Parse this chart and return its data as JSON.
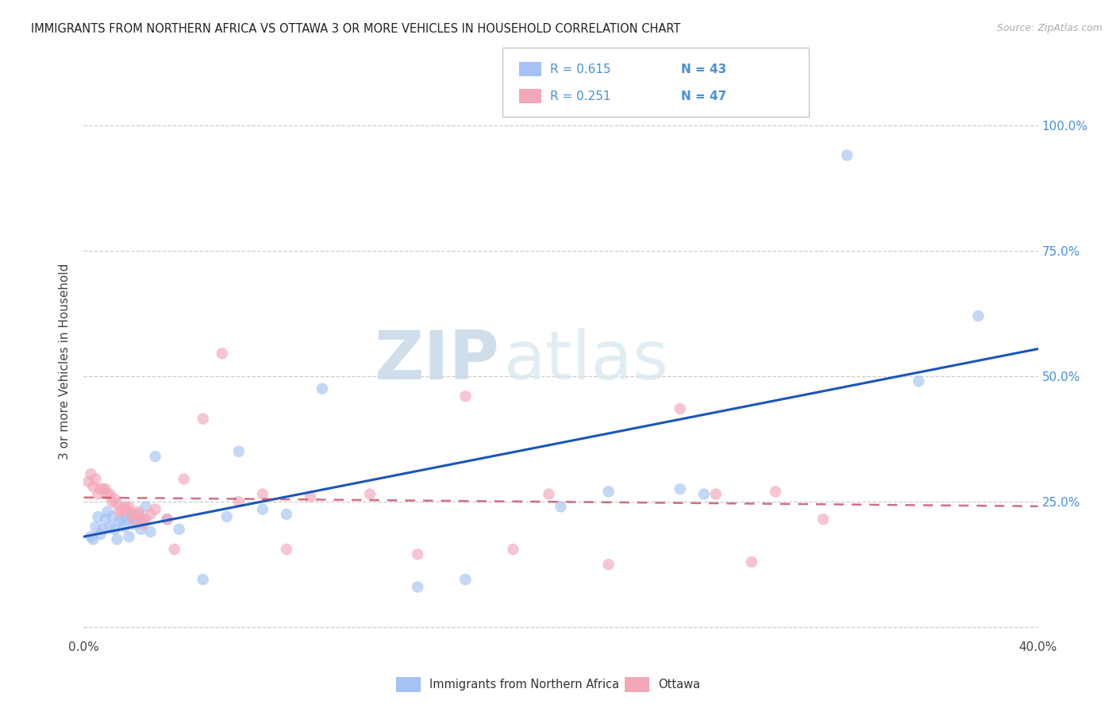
{
  "title": "IMMIGRANTS FROM NORTHERN AFRICA VS OTTAWA 3 OR MORE VEHICLES IN HOUSEHOLD CORRELATION CHART",
  "source": "Source: ZipAtlas.com",
  "legend_labels": [
    "Immigrants from Northern Africa",
    "Ottawa"
  ],
  "ylabel": "3 or more Vehicles in Household",
  "xlim": [
    0.0,
    0.4
  ],
  "ylim": [
    -0.02,
    1.08
  ],
  "blue_color": "#a4c2f4",
  "pink_color": "#f4a7b9",
  "blue_line_color": "#1a56bb",
  "pink_line_color": "#c0415a",
  "right_tick_color": "#4a90d9",
  "watermark_zip": "ZIP",
  "watermark_atlas": "atlas",
  "legend_r1": "R = 0.615",
  "legend_n1": "N = 43",
  "legend_r2": "R = 0.251",
  "legend_n2": "N = 47",
  "blue_x": [
    0.003,
    0.004,
    0.005,
    0.006,
    0.007,
    0.008,
    0.009,
    0.01,
    0.011,
    0.012,
    0.013,
    0.014,
    0.015,
    0.016,
    0.017,
    0.018,
    0.019,
    0.02,
    0.021,
    0.022,
    0.023,
    0.024,
    0.025,
    0.026,
    0.028,
    0.03,
    0.035,
    0.04,
    0.05,
    0.06,
    0.065,
    0.075,
    0.085,
    0.1,
    0.14,
    0.16,
    0.2,
    0.22,
    0.25,
    0.26,
    0.32,
    0.35,
    0.375
  ],
  "blue_y": [
    0.18,
    0.175,
    0.2,
    0.22,
    0.185,
    0.195,
    0.215,
    0.23,
    0.2,
    0.22,
    0.195,
    0.175,
    0.21,
    0.215,
    0.2,
    0.215,
    0.18,
    0.22,
    0.205,
    0.21,
    0.225,
    0.195,
    0.215,
    0.24,
    0.19,
    0.34,
    0.215,
    0.195,
    0.095,
    0.22,
    0.35,
    0.235,
    0.225,
    0.475,
    0.08,
    0.095,
    0.24,
    0.27,
    0.275,
    0.265,
    0.94,
    0.49,
    0.62
  ],
  "pink_x": [
    0.002,
    0.003,
    0.004,
    0.005,
    0.006,
    0.007,
    0.008,
    0.009,
    0.01,
    0.011,
    0.012,
    0.013,
    0.014,
    0.015,
    0.016,
    0.017,
    0.018,
    0.019,
    0.02,
    0.021,
    0.022,
    0.023,
    0.024,
    0.025,
    0.026,
    0.028,
    0.03,
    0.035,
    0.038,
    0.042,
    0.05,
    0.058,
    0.065,
    0.075,
    0.085,
    0.095,
    0.12,
    0.14,
    0.16,
    0.18,
    0.195,
    0.22,
    0.25,
    0.265,
    0.28,
    0.29,
    0.31
  ],
  "pink_y": [
    0.29,
    0.305,
    0.28,
    0.295,
    0.265,
    0.275,
    0.275,
    0.275,
    0.265,
    0.265,
    0.25,
    0.255,
    0.245,
    0.23,
    0.235,
    0.24,
    0.235,
    0.24,
    0.225,
    0.215,
    0.225,
    0.23,
    0.215,
    0.205,
    0.215,
    0.225,
    0.235,
    0.215,
    0.155,
    0.295,
    0.415,
    0.545,
    0.25,
    0.265,
    0.155,
    0.26,
    0.265,
    0.145,
    0.46,
    0.155,
    0.265,
    0.125,
    0.435,
    0.265,
    0.13,
    0.27,
    0.215
  ]
}
